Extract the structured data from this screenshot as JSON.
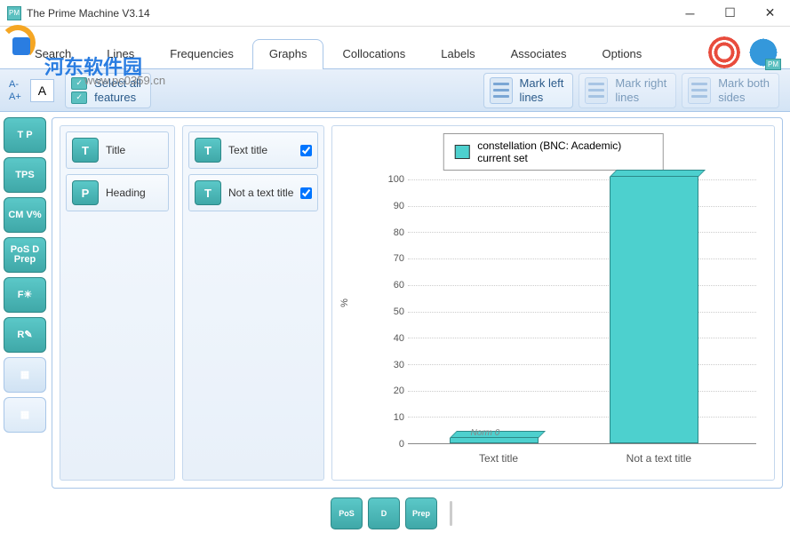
{
  "window": {
    "title": "The Prime Machine V3.14"
  },
  "watermark": {
    "text": "河东软件园",
    "url": "www.pc0359.cn"
  },
  "tabs": {
    "items": [
      {
        "label": "Search",
        "active": false
      },
      {
        "label": "Lines",
        "active": false
      },
      {
        "label": "Frequencies",
        "active": false
      },
      {
        "label": "Graphs",
        "active": true
      },
      {
        "label": "Collocations",
        "active": false
      },
      {
        "label": "Labels",
        "active": false
      },
      {
        "label": "Associates",
        "active": false
      },
      {
        "label": "Options",
        "active": false
      }
    ]
  },
  "font_tools": {
    "dec": "A-",
    "inc": "A+",
    "sample": "A"
  },
  "toolbar_groups": {
    "select_all": {
      "line1": "Select all",
      "line2": "features",
      "enabled": true
    },
    "mark_left": {
      "line1": "Mark left",
      "line2": "lines",
      "enabled": true
    },
    "mark_right": {
      "line1": "Mark right",
      "line2": "lines",
      "enabled": false
    },
    "mark_both": {
      "line1": "Mark both",
      "line2": "sides",
      "enabled": false
    }
  },
  "rail": [
    {
      "label": "T P",
      "style": "teal"
    },
    {
      "label": "TPS",
      "style": "teal"
    },
    {
      "label": "CM V%",
      "style": "teal"
    },
    {
      "label": "PoS D Prep",
      "style": "teal"
    },
    {
      "label": "F☀",
      "style": "teal"
    },
    {
      "label": "R✎",
      "style": "teal"
    },
    {
      "label": "▦",
      "style": "light"
    },
    {
      "label": "▦",
      "style": "grid"
    }
  ],
  "col1": {
    "items": [
      {
        "icon": "T",
        "label": "Title"
      },
      {
        "icon": "P",
        "label": "Heading"
      }
    ]
  },
  "col2": {
    "items": [
      {
        "icon": "T",
        "label": "Text title",
        "checked": true
      },
      {
        "icon": "T",
        "label": "Not a text title",
        "checked": true
      }
    ]
  },
  "chart": {
    "type": "bar",
    "legend_text": "constellation (BNC: Academic) current set",
    "legend_color": "#4dd0ce",
    "ylim": [
      0,
      100
    ],
    "ytick_step": 10,
    "ylabel": "%",
    "categories": [
      "Text title",
      "Not a text title"
    ],
    "values": [
      2,
      100
    ],
    "bar_color": "#4dd0ce",
    "bar_border": "#2d8888",
    "background_color": "#ffffff",
    "grid_color": "#cccccc",
    "norm_label": "Norm 0",
    "label_fontsize": 12,
    "tick_fontsize": 11
  },
  "bottom": {
    "buttons": [
      {
        "label": "PoS"
      },
      {
        "label": "D"
      },
      {
        "label": "Prep"
      }
    ]
  }
}
